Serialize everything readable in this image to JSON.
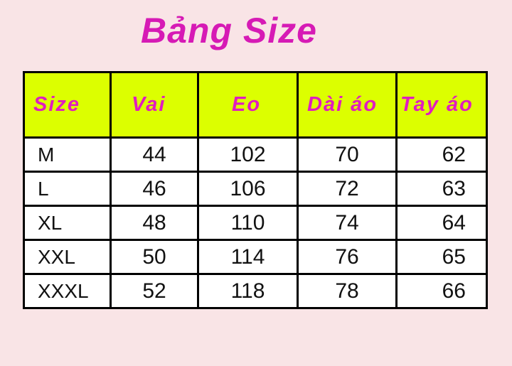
{
  "title": "Bảng Size",
  "colors": {
    "background": "#f9e4e6",
    "title": "#d61ab5",
    "header_bg": "#dcff00",
    "header_text": "#e01cc0"
  },
  "chart_data": {
    "type": "table",
    "columns": [
      "Size",
      "Vai",
      "Eo",
      "Dài áo",
      "Tay áo"
    ],
    "rows": [
      [
        "M",
        "44",
        "102",
        "70",
        "62"
      ],
      [
        "L",
        "46",
        "106",
        "72",
        "63"
      ],
      [
        "XL",
        "48",
        "110",
        "74",
        "64"
      ],
      [
        "XXL",
        "50",
        "114",
        "76",
        "65"
      ],
      [
        "XXXL",
        "52",
        "118",
        "78",
        "66"
      ]
    ]
  }
}
